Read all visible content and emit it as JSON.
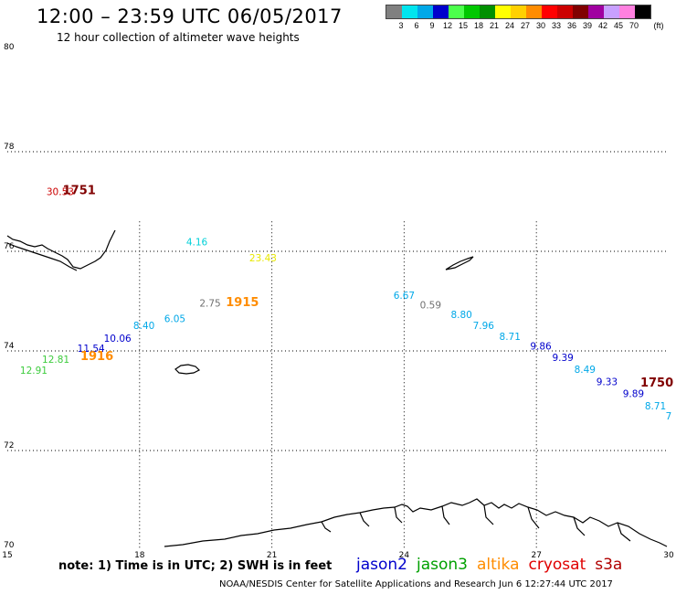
{
  "title": "12:00 – 23:59 UTC 06/05/2017",
  "subtitle": "12 hour collection of altimeter wave heights",
  "legend": {
    "unit": "(ft)",
    "bins": [
      {
        "label": "3",
        "color": "#808080"
      },
      {
        "label": "6",
        "color": "#00e5ee"
      },
      {
        "label": "9",
        "color": "#00a8e8"
      },
      {
        "label": "12",
        "color": "#0000cc"
      },
      {
        "label": "15",
        "color": "#4cff4c"
      },
      {
        "label": "18",
        "color": "#00c800"
      },
      {
        "label": "21",
        "color": "#009000"
      },
      {
        "label": "24",
        "color": "#ffff00"
      },
      {
        "label": "27",
        "color": "#ffd000"
      },
      {
        "label": "30",
        "color": "#ff8c00"
      },
      {
        "label": "33",
        "color": "#ff0000"
      },
      {
        "label": "36",
        "color": "#cc0000"
      },
      {
        "label": "39",
        "color": "#800000"
      },
      {
        "label": "42",
        "color": "#a000a0"
      },
      {
        "label": "45",
        "color": "#c8a0ff"
      },
      {
        "label": "70",
        "color": "#ff80e0"
      },
      {
        "label": "",
        "color": "#000000"
      }
    ]
  },
  "axes": {
    "lon_min": 15,
    "lon_max": 30,
    "lat_min": 70,
    "lat_max": 80,
    "lon_ticks": [
      "15",
      "18",
      "21",
      "24",
      "27",
      "30"
    ],
    "lat_ticks": [
      "80",
      "78",
      "76",
      "74",
      "72",
      "70"
    ]
  },
  "measurements": [
    {
      "lon": 16.2,
      "lat": 77.13,
      "value": "30.53",
      "color": "#cc0000"
    },
    {
      "lon": 19.3,
      "lat": 76.12,
      "value": "4.16",
      "color": "#00d0d8"
    },
    {
      "lon": 20.8,
      "lat": 75.8,
      "value": "23.43",
      "color": "#e8e800"
    },
    {
      "lon": 19.6,
      "lat": 74.89,
      "value": "2.75",
      "color": "#707070"
    },
    {
      "lon": 18.8,
      "lat": 74.58,
      "value": "6.05",
      "color": "#00a8e8"
    },
    {
      "lon": 18.1,
      "lat": 74.44,
      "value": "8.40",
      "color": "#00a8e8"
    },
    {
      "lon": 17.5,
      "lat": 74.18,
      "value": "10.06",
      "color": "#0000cc"
    },
    {
      "lon": 16.9,
      "lat": 73.98,
      "value": "11.54",
      "color": "#0000cc"
    },
    {
      "lon": 16.1,
      "lat": 73.76,
      "value": "12.81",
      "color": "#3ecc3e"
    },
    {
      "lon": 15.6,
      "lat": 73.54,
      "value": "12.91",
      "color": "#3ecc3e"
    },
    {
      "lon": 24.0,
      "lat": 75.05,
      "value": "6.67",
      "color": "#00a8e8"
    },
    {
      "lon": 24.6,
      "lat": 74.85,
      "value": "0.59",
      "color": "#707070"
    },
    {
      "lon": 25.3,
      "lat": 74.66,
      "value": "8.80",
      "color": "#00a8e8"
    },
    {
      "lon": 25.8,
      "lat": 74.44,
      "value": "7.96",
      "color": "#00a8e8"
    },
    {
      "lon": 26.4,
      "lat": 74.22,
      "value": "8.71",
      "color": "#00a8e8"
    },
    {
      "lon": 27.1,
      "lat": 74.03,
      "value": "9.86",
      "color": "#0000cc"
    },
    {
      "lon": 27.6,
      "lat": 73.8,
      "value": "9.39",
      "color": "#0000cc"
    },
    {
      "lon": 28.1,
      "lat": 73.56,
      "value": "8.49",
      "color": "#00a8e8"
    },
    {
      "lon": 28.6,
      "lat": 73.31,
      "value": "9.33",
      "color": "#0000cc"
    },
    {
      "lon": 29.2,
      "lat": 73.07,
      "value": "9.89",
      "color": "#0000cc"
    },
    {
      "lon": 29.7,
      "lat": 72.83,
      "value": "8.71",
      "color": "#00a8e8"
    },
    {
      "lon": 30.0,
      "lat": 72.62,
      "value": "7",
      "color": "#00a8e8"
    }
  ],
  "time_labels": [
    {
      "lon": 16.3,
      "lat": 77.15,
      "text": "1751",
      "color": "#800000"
    },
    {
      "lon": 20.0,
      "lat": 74.9,
      "text": "1915",
      "color": "#ff8c00"
    },
    {
      "lon": 16.7,
      "lat": 73.82,
      "text": "1916",
      "color": "#ff8c00"
    },
    {
      "lon": 29.4,
      "lat": 73.28,
      "text": "1750",
      "color": "#800000"
    }
  ],
  "note": "note: 1) Time is in UTC; 2) SWH is in feet",
  "satellites": [
    {
      "name": "jason2",
      "color": "#0000cc"
    },
    {
      "name": "jason3",
      "color": "#00a000"
    },
    {
      "name": "altika",
      "color": "#ff8c00"
    },
    {
      "name": "cryosat",
      "color": "#e00000"
    },
    {
      "name": "s3a",
      "color": "#b00000"
    }
  ],
  "credit": "NOAA/NESDIS Center for Satellite Applications and Research   Jun  6 12:27:44 UTC 2017"
}
